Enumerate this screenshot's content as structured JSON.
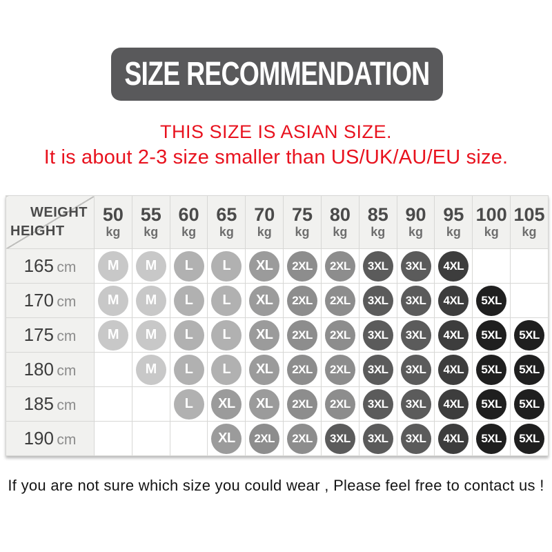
{
  "title": {
    "text": "SIZE RECOMMENDATION"
  },
  "notice": {
    "line1": "THIS SIZE IS ASIAN SIZE.",
    "line2": "It is about 2-3 size smaller than US/UK/AU/EU size."
  },
  "table": {
    "corner_top": "WEIGHT",
    "corner_bottom": "HEIGHT",
    "weights": [
      {
        "value": "50",
        "unit": "kg"
      },
      {
        "value": "55",
        "unit": "kg"
      },
      {
        "value": "60",
        "unit": "kg"
      },
      {
        "value": "65",
        "unit": "kg"
      },
      {
        "value": "70",
        "unit": "kg"
      },
      {
        "value": "75",
        "unit": "kg"
      },
      {
        "value": "80",
        "unit": "kg"
      },
      {
        "value": "85",
        "unit": "kg"
      },
      {
        "value": "90",
        "unit": "kg"
      },
      {
        "value": "95",
        "unit": "kg"
      },
      {
        "value": "100",
        "unit": "kg"
      },
      {
        "value": "105",
        "unit": "kg"
      }
    ],
    "rows": [
      {
        "height": "165",
        "unit": "cm",
        "sizes": [
          "M",
          "M",
          "L",
          "L",
          "XL",
          "2XL",
          "2XL",
          "3XL",
          "3XL",
          "4XL",
          "",
          ""
        ]
      },
      {
        "height": "170",
        "unit": "cm",
        "sizes": [
          "M",
          "M",
          "L",
          "L",
          "XL",
          "2XL",
          "2XL",
          "3XL",
          "3XL",
          "4XL",
          "5XL",
          ""
        ]
      },
      {
        "height": "175",
        "unit": "cm",
        "sizes": [
          "M",
          "M",
          "L",
          "L",
          "XL",
          "2XL",
          "2XL",
          "3XL",
          "3XL",
          "4XL",
          "5XL",
          "5XL"
        ]
      },
      {
        "height": "180",
        "unit": "cm",
        "sizes": [
          "",
          "M",
          "L",
          "L",
          "XL",
          "2XL",
          "2XL",
          "3XL",
          "3XL",
          "4XL",
          "5XL",
          "5XL"
        ]
      },
      {
        "height": "185",
        "unit": "cm",
        "sizes": [
          "",
          "",
          "L",
          "XL",
          "XL",
          "2XL",
          "2XL",
          "3XL",
          "3XL",
          "4XL",
          "5XL",
          "5XL"
        ]
      },
      {
        "height": "190",
        "unit": "cm",
        "sizes": [
          "",
          "",
          "",
          "XL",
          "2XL",
          "2XL",
          "3XL",
          "3XL",
          "3XL",
          "4XL",
          "5XL",
          "5XL"
        ]
      }
    ]
  },
  "size_colors": {
    "M": "#c8c8c8",
    "L": "#b1b1b1",
    "XL": "#9b9b9b",
    "2XL": "#8d8d8d",
    "3XL": "#5b5b5b",
    "4XL": "#3d3d3d",
    "5XL": "#1f1f1f"
  },
  "footer": {
    "text": "If you are not sure which size you could wear , Please feel free to contact us !"
  },
  "chart_data": {
    "type": "table",
    "title": "SIZE RECOMMENDATION",
    "subtitle": [
      "THIS SIZE IS ASIAN SIZE.",
      "It is about 2-3 size smaller than US/UK/AU/EU size."
    ],
    "columns_axis_label": "WEIGHT",
    "rows_axis_label": "HEIGHT",
    "columns": [
      "50 kg",
      "55 kg",
      "60 kg",
      "65 kg",
      "70 kg",
      "75 kg",
      "80 kg",
      "85 kg",
      "90 kg",
      "95 kg",
      "100 kg",
      "105 kg"
    ],
    "row_labels": [
      "165 cm",
      "170 cm",
      "175 cm",
      "180 cm",
      "185 cm",
      "190 cm"
    ],
    "cells": [
      [
        "M",
        "M",
        "L",
        "L",
        "XL",
        "2XL",
        "2XL",
        "3XL",
        "3XL",
        "4XL",
        "",
        ""
      ],
      [
        "M",
        "M",
        "L",
        "L",
        "XL",
        "2XL",
        "2XL",
        "3XL",
        "3XL",
        "4XL",
        "5XL",
        ""
      ],
      [
        "M",
        "M",
        "L",
        "L",
        "XL",
        "2XL",
        "2XL",
        "3XL",
        "3XL",
        "4XL",
        "5XL",
        "5XL"
      ],
      [
        "",
        "M",
        "L",
        "L",
        "XL",
        "2XL",
        "2XL",
        "3XL",
        "3XL",
        "4XL",
        "5XL",
        "5XL"
      ],
      [
        "",
        "",
        "L",
        "XL",
        "XL",
        "2XL",
        "2XL",
        "3XL",
        "3XL",
        "4XL",
        "5XL",
        "5XL"
      ],
      [
        "",
        "",
        "",
        "XL",
        "2XL",
        "2XL",
        "3XL",
        "3XL",
        "3XL",
        "4XL",
        "5XL",
        "5XL"
      ]
    ],
    "footnote": "If you are not sure which size you could wear , Please feel free to contact us !"
  }
}
